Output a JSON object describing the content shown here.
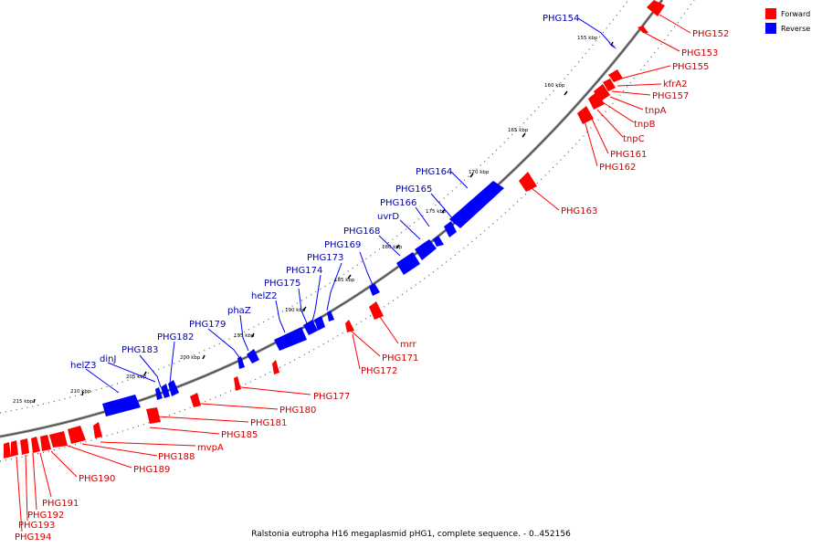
{
  "caption": "Ralstonia eutropha H16 megaplasmid pHG1, complete sequence. - 0..452156",
  "legend": [
    {
      "label": "Forward",
      "color": "#ff0000"
    },
    {
      "label": "Reverse",
      "color": "#0000ff"
    }
  ],
  "ticks": [
    "155 kbp",
    "160 kbp",
    "165 kbp",
    "170 kbp",
    "175 kbp",
    "180 kbp",
    "185 kbp",
    "190 kbp",
    "195 kbp",
    "200 kbp",
    "205 kbp",
    "210 kbp",
    "215 kbp"
  ],
  "reverse_labels": [
    "PHG154",
    "PHG164",
    "PHG165",
    "PHG166",
    "uvrD",
    "PHG168",
    "PHG169",
    "PHG173",
    "PHG174",
    "PHG175",
    "helZ2",
    "phaZ",
    "PHG179",
    "PHG182",
    "PHG183",
    "dinJ",
    "helZ3"
  ],
  "forward_labels": [
    "PHG152",
    "PHG153",
    "PHG155",
    "kfrA2",
    "PHG157",
    "tnpA",
    "tnpB",
    "tnpC",
    "PHG161",
    "PHG162",
    "PHG163",
    "mrr",
    "PHG171",
    "PHG172",
    "PHG177",
    "PHG180",
    "PHG181",
    "PHG185",
    "mvpA",
    "PHG188",
    "PHG189",
    "PHG190",
    "PHG191",
    "PHG192",
    "PHG193",
    "PHG194"
  ]
}
